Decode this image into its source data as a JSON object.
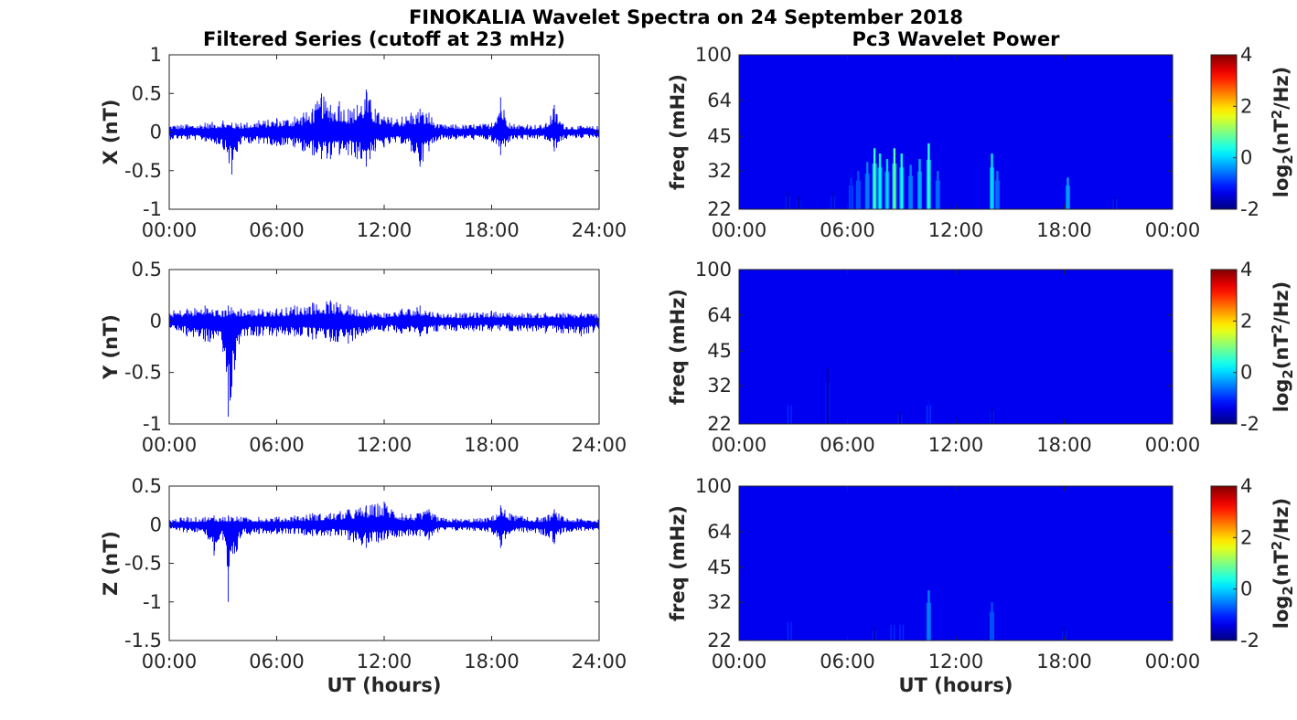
{
  "figure": {
    "title": "FINOKALIA Wavelet Spectra on 24 September 2018",
    "left_column_title": "Filtered Series (cutoff at 23 mHz)",
    "right_column_title": "Pc3 Wavelet Power"
  },
  "chart_data": [
    {
      "type": "line",
      "component": "X",
      "ylabel": "X (nT)",
      "xlabel": "",
      "xlim": [
        0,
        24
      ],
      "ylim": [
        -1,
        1
      ],
      "xticklabels": [
        "00:00",
        "06:00",
        "12:00",
        "18:00",
        "24:00"
      ],
      "yticks": [
        1,
        0.5,
        0,
        -0.5,
        -1
      ],
      "yticklabels": [
        "1",
        "0.5",
        "0",
        "-0.5",
        "-1"
      ],
      "color": "#0000ff",
      "envelope": {
        "x": [
          0,
          1,
          2,
          3,
          3.5,
          4,
          5,
          6,
          7,
          7.5,
          8,
          8.5,
          9,
          9.5,
          10,
          10.5,
          11,
          11.5,
          12,
          13,
          13.5,
          14,
          14.5,
          15,
          16,
          17,
          18,
          18.5,
          19,
          20,
          21,
          21.5,
          22,
          23,
          24
        ],
        "ymax": [
          0.1,
          0.1,
          0.12,
          0.15,
          0.12,
          0.12,
          0.15,
          0.18,
          0.2,
          0.25,
          0.3,
          0.5,
          0.35,
          0.4,
          0.3,
          0.35,
          0.55,
          0.3,
          0.2,
          0.2,
          0.25,
          0.3,
          0.25,
          0.1,
          0.1,
          0.1,
          0.12,
          0.45,
          0.12,
          0.1,
          0.1,
          0.35,
          0.1,
          0.08,
          0.08
        ],
        "ymin": [
          -0.1,
          -0.1,
          -0.12,
          -0.2,
          -0.55,
          -0.15,
          -0.15,
          -0.18,
          -0.2,
          -0.25,
          -0.3,
          -0.35,
          -0.35,
          -0.3,
          -0.3,
          -0.35,
          -0.45,
          -0.25,
          -0.2,
          -0.15,
          -0.25,
          -0.45,
          -0.25,
          -0.1,
          -0.1,
          -0.1,
          -0.12,
          -0.3,
          -0.12,
          -0.1,
          -0.1,
          -0.25,
          -0.1,
          -0.08,
          -0.08
        ]
      }
    },
    {
      "type": "line",
      "component": "Y",
      "ylabel": "Y (nT)",
      "xlabel": "",
      "xlim": [
        0,
        24
      ],
      "ylim": [
        -1,
        0.5
      ],
      "xticklabels": [
        "00:00",
        "06:00",
        "12:00",
        "18:00",
        "24:00"
      ],
      "yticks": [
        0.5,
        0,
        -0.5,
        -1
      ],
      "yticklabels": [
        "0.5",
        "0",
        "-0.5",
        "-1"
      ],
      "color": "#0000ff",
      "envelope": {
        "x": [
          0,
          1,
          2,
          3,
          3.3,
          4,
          5,
          6,
          7,
          8,
          9,
          10,
          11,
          12,
          13,
          14,
          15,
          16,
          17,
          18,
          19,
          20,
          21,
          22,
          23,
          24
        ],
        "ymax": [
          0.1,
          0.12,
          0.15,
          0.1,
          0.15,
          0.12,
          0.12,
          0.12,
          0.15,
          0.18,
          0.2,
          0.15,
          0.1,
          0.08,
          0.12,
          0.15,
          0.08,
          0.08,
          0.08,
          0.1,
          0.08,
          0.08,
          0.08,
          0.08,
          0.08,
          0.08
        ],
        "ymin": [
          -0.1,
          -0.15,
          -0.2,
          -0.3,
          -0.93,
          -0.15,
          -0.15,
          -0.15,
          -0.15,
          -0.18,
          -0.2,
          -0.22,
          -0.12,
          -0.1,
          -0.12,
          -0.15,
          -0.1,
          -0.1,
          -0.1,
          -0.1,
          -0.1,
          -0.1,
          -0.12,
          -0.12,
          -0.15,
          -0.1
        ]
      }
    },
    {
      "type": "line",
      "component": "Z",
      "ylabel": "Z (nT)",
      "xlabel": "UT (hours)",
      "xlim": [
        0,
        24
      ],
      "ylim": [
        -1.5,
        0.5
      ],
      "xticklabels": [
        "00:00",
        "06:00",
        "12:00",
        "18:00",
        "24:00"
      ],
      "yticks": [
        0.5,
        0,
        -0.5,
        -1,
        -1.5
      ],
      "yticklabels": [
        "0.5",
        "0",
        "-0.5",
        "-1",
        "-1.5"
      ],
      "color": "#0000ff",
      "envelope": {
        "x": [
          0,
          1,
          2,
          2.5,
          3,
          3.3,
          4,
          5,
          6,
          7,
          8,
          9,
          10,
          11,
          12,
          13,
          14,
          14.5,
          15,
          16,
          17,
          18,
          18.5,
          19,
          20,
          21,
          21.5,
          22,
          23,
          24
        ],
        "ymax": [
          0.08,
          0.1,
          0.1,
          0.12,
          0.1,
          0.12,
          0.1,
          0.1,
          0.1,
          0.12,
          0.15,
          0.15,
          0.2,
          0.25,
          0.3,
          0.15,
          0.15,
          0.2,
          0.1,
          0.08,
          0.08,
          0.1,
          0.25,
          0.15,
          0.1,
          0.1,
          0.2,
          0.1,
          0.08,
          0.08
        ],
        "ymin": [
          -0.08,
          -0.1,
          -0.12,
          -0.4,
          -0.2,
          -1.0,
          -0.15,
          -0.12,
          -0.12,
          -0.12,
          -0.15,
          -0.15,
          -0.2,
          -0.3,
          -0.2,
          -0.15,
          -0.15,
          -0.2,
          -0.1,
          -0.08,
          -0.08,
          -0.1,
          -0.3,
          -0.12,
          -0.1,
          -0.15,
          -0.25,
          -0.1,
          -0.08,
          -0.08
        ]
      }
    },
    {
      "type": "heatmap",
      "component": "X",
      "ylabel": "freq (mHz)",
      "xlabel": "",
      "xlim": [
        0,
        24
      ],
      "ylim": [
        22,
        100
      ],
      "yscale": "log",
      "xticklabels": [
        "00:00",
        "06:00",
        "12:00",
        "18:00",
        "00:00"
      ],
      "yticks": [
        100,
        64,
        45,
        32,
        22
      ],
      "yticklabels": [
        "100",
        "64",
        "45",
        "32",
        "22"
      ],
      "colorbar": {
        "label": "log2(nT2/Hz)",
        "range": [
          -2,
          4
        ],
        "ticklabels": [
          "4",
          "2",
          "0",
          "-2"
        ]
      },
      "background_value": -2,
      "bursts": [
        {
          "t": 2.7,
          "fmax": 26,
          "v": -1.6
        },
        {
          "t": 3.3,
          "fmax": 25,
          "v": -1.7
        },
        {
          "t": 5.2,
          "fmax": 26,
          "v": -1.5
        },
        {
          "t": 6.2,
          "fmax": 30,
          "v": -1.0
        },
        {
          "t": 6.6,
          "fmax": 32,
          "v": -0.8
        },
        {
          "t": 7.1,
          "fmax": 35,
          "v": -0.5
        },
        {
          "t": 7.5,
          "fmax": 40,
          "v": 0.6
        },
        {
          "t": 7.8,
          "fmax": 38,
          "v": 0.2
        },
        {
          "t": 8.2,
          "fmax": 36,
          "v": 0.0
        },
        {
          "t": 8.6,
          "fmax": 40,
          "v": 0.8
        },
        {
          "t": 9.0,
          "fmax": 38,
          "v": 0.3
        },
        {
          "t": 9.5,
          "fmax": 34,
          "v": -0.5
        },
        {
          "t": 10.0,
          "fmax": 36,
          "v": -0.2
        },
        {
          "t": 10.5,
          "fmax": 42,
          "v": 0.5
        },
        {
          "t": 11.0,
          "fmax": 32,
          "v": -0.6
        },
        {
          "t": 14.0,
          "fmax": 38,
          "v": 0.1
        },
        {
          "t": 14.3,
          "fmax": 32,
          "v": -0.6
        },
        {
          "t": 18.2,
          "fmax": 30,
          "v": -0.3
        },
        {
          "t": 20.8,
          "fmax": 25,
          "v": -1.5
        }
      ]
    },
    {
      "type": "heatmap",
      "component": "Y",
      "ylabel": "freq (mHz)",
      "xlabel": "",
      "xlim": [
        0,
        24
      ],
      "ylim": [
        22,
        100
      ],
      "yscale": "log",
      "xticklabels": [
        "00:00",
        "06:00",
        "12:00",
        "18:00",
        "00:00"
      ],
      "yticks": [
        100,
        64,
        45,
        32,
        22
      ],
      "yticklabels": [
        "100",
        "64",
        "45",
        "32",
        "22"
      ],
      "colorbar": {
        "label": "log2(nT2/Hz)",
        "range": [
          -2,
          4
        ],
        "ticklabels": [
          "4",
          "2",
          "0",
          "-2"
        ]
      },
      "background_value": -2,
      "bursts": [
        {
          "t": 2.8,
          "fmax": 28,
          "v": -1.3
        },
        {
          "t": 4.9,
          "fmax": 38,
          "v": -1.7
        },
        {
          "t": 8.9,
          "fmax": 25,
          "v": -1.6
        },
        {
          "t": 10.5,
          "fmax": 28,
          "v": -1.2
        },
        {
          "t": 14.0,
          "fmax": 26,
          "v": -1.6
        }
      ]
    },
    {
      "type": "heatmap",
      "component": "Z",
      "ylabel": "freq (mHz)",
      "xlabel": "UT (hours)",
      "xlim": [
        0,
        24
      ],
      "ylim": [
        22,
        100
      ],
      "yscale": "log",
      "xticklabels": [
        "00:00",
        "06:00",
        "12:00",
        "18:00",
        "00:00"
      ],
      "yticks": [
        100,
        64,
        45,
        32,
        22
      ],
      "yticklabels": [
        "100",
        "64",
        "45",
        "32",
        "22"
      ],
      "colorbar": {
        "label": "log2(nT2/Hz)",
        "range": [
          -2,
          4
        ],
        "ticklabels": [
          "4",
          "2",
          "0",
          "-2"
        ]
      },
      "background_value": -2,
      "bursts": [
        {
          "t": 2.8,
          "fmax": 28,
          "v": -1.3
        },
        {
          "t": 7.5,
          "fmax": 25,
          "v": -1.6
        },
        {
          "t": 8.5,
          "fmax": 27,
          "v": -1.3
        },
        {
          "t": 9.0,
          "fmax": 27,
          "v": -1.3
        },
        {
          "t": 10.5,
          "fmax": 36,
          "v": -0.5
        },
        {
          "t": 14.0,
          "fmax": 32,
          "v": -0.8
        },
        {
          "t": 18.0,
          "fmax": 25,
          "v": -1.6
        }
      ]
    }
  ]
}
